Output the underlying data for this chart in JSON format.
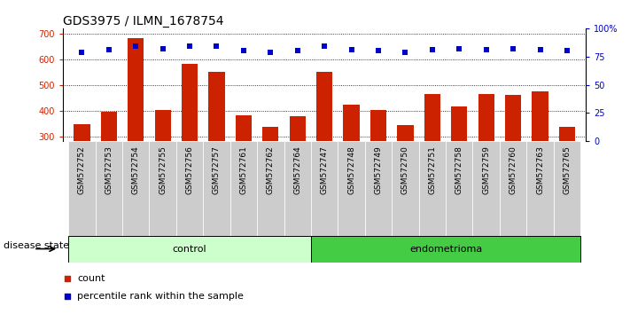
{
  "title": "GDS3975 / ILMN_1678754",
  "samples": [
    "GSM572752",
    "GSM572753",
    "GSM572754",
    "GSM572755",
    "GSM572756",
    "GSM572757",
    "GSM572761",
    "GSM572762",
    "GSM572764",
    "GSM572747",
    "GSM572748",
    "GSM572749",
    "GSM572750",
    "GSM572751",
    "GSM572758",
    "GSM572759",
    "GSM572760",
    "GSM572763",
    "GSM572765"
  ],
  "counts": [
    348,
    395,
    682,
    403,
    582,
    550,
    380,
    337,
    378,
    550,
    424,
    402,
    344,
    463,
    416,
    463,
    460,
    473,
    338
  ],
  "percentiles": [
    79,
    81,
    84,
    82,
    84,
    84,
    80,
    79,
    80,
    84,
    81,
    80,
    79,
    81,
    82,
    81,
    82,
    81,
    80
  ],
  "groups": [
    "control",
    "control",
    "control",
    "control",
    "control",
    "control",
    "control",
    "control",
    "control",
    "endometrioma",
    "endometrioma",
    "endometrioma",
    "endometrioma",
    "endometrioma",
    "endometrioma",
    "endometrioma",
    "endometrioma",
    "endometrioma",
    "endometrioma"
  ],
  "control_color_light": "#ccffcc",
  "endometrioma_color_dark": "#44cc44",
  "bar_color": "#cc2200",
  "dot_color": "#0000cc",
  "sample_box_color": "#cccccc",
  "ylim_left": [
    280,
    720
  ],
  "ylim_right": [
    0,
    100
  ],
  "yticks_left": [
    300,
    400,
    500,
    600,
    700
  ],
  "yticks_right": [
    0,
    25,
    50,
    75,
    100
  ],
  "bg_color": "#ffffff",
  "grid_color": "black",
  "title_fontsize": 10,
  "tick_fontsize": 7,
  "label_fontsize": 8,
  "sample_fontsize": 6.5
}
